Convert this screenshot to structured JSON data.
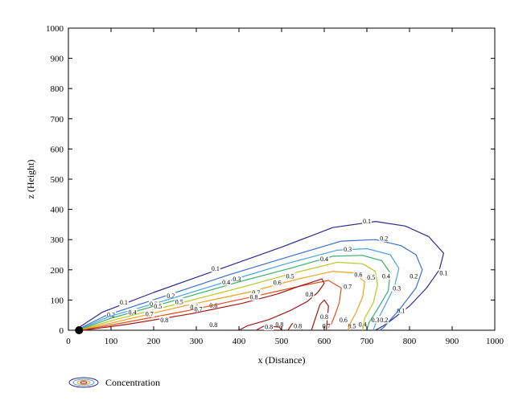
{
  "chart_data": {
    "type": "contour",
    "xlabel": "x (Distance)",
    "ylabel": "z (Height)",
    "xlim": [
      0,
      1000
    ],
    "ylim": [
      0,
      1000
    ],
    "xticks": [
      0,
      100,
      200,
      300,
      400,
      500,
      600,
      700,
      800,
      900,
      1000
    ],
    "yticks": [
      0,
      100,
      200,
      300,
      400,
      500,
      600,
      700,
      800,
      900,
      1000
    ],
    "grid": false,
    "legend": {
      "label": "Concentration",
      "position": "bottom-left"
    },
    "source": {
      "x": 25,
      "z": 0,
      "color": "#000000"
    },
    "levels": [
      {
        "level": 0.1,
        "color": "#2a2a8c",
        "points": [
          [
            15,
            0
          ],
          [
            80,
            60
          ],
          [
            200,
            125
          ],
          [
            360,
            205
          ],
          [
            500,
            275
          ],
          [
            620,
            340
          ],
          [
            720,
            360
          ],
          [
            790,
            345
          ],
          [
            845,
            310
          ],
          [
            880,
            255
          ],
          [
            870,
            200
          ],
          [
            840,
            140
          ],
          [
            800,
            80
          ],
          [
            745,
            20
          ],
          [
            720,
            0
          ]
        ],
        "labels": [
          [
            130,
            93
          ],
          [
            345,
            205
          ],
          [
            700,
            362
          ],
          [
            880,
            190
          ],
          [
            780,
            65
          ]
        ]
      },
      {
        "level": 0.2,
        "color": "#3a6fd0",
        "points": [
          [
            18,
            0
          ],
          [
            90,
            50
          ],
          [
            220,
            110
          ],
          [
            380,
            185
          ],
          [
            520,
            245
          ],
          [
            640,
            295
          ],
          [
            720,
            300
          ],
          [
            780,
            280
          ],
          [
            815,
            250
          ],
          [
            830,
            200
          ],
          [
            815,
            140
          ],
          [
            780,
            75
          ],
          [
            740,
            10
          ],
          [
            730,
            0
          ]
        ],
        "labels": [
          [
            100,
            52
          ],
          [
            240,
            115
          ],
          [
            740,
            305
          ],
          [
            810,
            180
          ],
          [
            740,
            35
          ]
        ]
      },
      {
        "level": 0.3,
        "color": "#4aa3e0",
        "points": [
          [
            20,
            0
          ],
          [
            95,
            45
          ],
          [
            230,
            100
          ],
          [
            380,
            165
          ],
          [
            510,
            220
          ],
          [
            630,
            265
          ],
          [
            700,
            270
          ],
          [
            755,
            250
          ],
          [
            775,
            205
          ],
          [
            765,
            145
          ],
          [
            740,
            75
          ],
          [
            720,
            20
          ],
          [
            715,
            0
          ]
        ],
        "labels": [
          [
            200,
            88
          ],
          [
            395,
            170
          ],
          [
            655,
            268
          ],
          [
            770,
            140
          ],
          [
            720,
            35
          ]
        ]
      },
      {
        "level": 0.4,
        "color": "#38b070",
        "points": [
          [
            22,
            0
          ],
          [
            100,
            40
          ],
          [
            240,
            95
          ],
          [
            400,
            160
          ],
          [
            520,
            205
          ],
          [
            620,
            245
          ],
          [
            690,
            248
          ],
          [
            735,
            230
          ],
          [
            755,
            190
          ],
          [
            750,
            130
          ],
          [
            725,
            70
          ],
          [
            705,
            25
          ],
          [
            700,
            0
          ]
        ],
        "labels": [
          [
            150,
            60
          ],
          [
            370,
            160
          ],
          [
            600,
            237
          ],
          [
            745,
            180
          ],
          [
            690,
            20
          ]
        ]
      },
      {
        "level": 0.5,
        "color": "#b8c828",
        "points": [
          [
            24,
            0
          ],
          [
            110,
            35
          ],
          [
            250,
            85
          ],
          [
            400,
            140
          ],
          [
            530,
            190
          ],
          [
            630,
            225
          ],
          [
            690,
            220
          ],
          [
            720,
            195
          ],
          [
            725,
            150
          ],
          [
            715,
            90
          ],
          [
            695,
            40
          ],
          [
            690,
            0
          ]
        ],
        "labels": [
          [
            210,
            80
          ],
          [
            260,
            95
          ],
          [
            520,
            180
          ],
          [
            710,
            175
          ],
          [
            665,
            15
          ]
        ]
      },
      {
        "level": 0.6,
        "color": "#f0a020",
        "points": [
          [
            27,
            0
          ],
          [
            120,
            30
          ],
          [
            270,
            80
          ],
          [
            420,
            125
          ],
          [
            540,
            170
          ],
          [
            620,
            195
          ],
          [
            670,
            190
          ],
          [
            695,
            160
          ],
          [
            690,
            110
          ],
          [
            675,
            60
          ],
          [
            660,
            20
          ],
          [
            655,
            0
          ]
        ],
        "labels": [
          [
            295,
            77
          ],
          [
            340,
            83
          ],
          [
            490,
            158
          ],
          [
            680,
            185
          ],
          [
            645,
            35
          ]
        ]
      },
      {
        "level": 0.7,
        "color": "#e05020",
        "points": [
          [
            30,
            0
          ],
          [
            130,
            25
          ],
          [
            280,
            65
          ],
          [
            430,
            110
          ],
          [
            540,
            145
          ],
          [
            610,
            165
          ],
          [
            640,
            140
          ],
          [
            635,
            90
          ],
          [
            625,
            50
          ],
          [
            615,
            15
          ],
          [
            610,
            0
          ]
        ],
        "labels": [
          [
            190,
            55
          ],
          [
            305,
            70
          ],
          [
            440,
            125
          ],
          [
            655,
            145
          ],
          [
            605,
            15
          ]
        ]
      },
      {
        "level": 0.8,
        "color": "#a01818",
        "points": [
          [
            35,
            0
          ],
          [
            140,
            20
          ],
          [
            290,
            55
          ],
          [
            410,
            90
          ],
          [
            490,
            120
          ],
          [
            540,
            145
          ],
          [
            595,
            170
          ],
          [
            600,
            155
          ],
          [
            585,
            125
          ],
          [
            560,
            95
          ],
          [
            520,
            65
          ],
          [
            470,
            35
          ],
          [
            420,
            15
          ],
          [
            400,
            0
          ]
        ],
        "labels": [
          [
            225,
            35
          ],
          [
            435,
            110
          ],
          [
            565,
            120
          ],
          [
            340,
            18
          ],
          [
            495,
            20
          ]
        ]
      },
      {
        "level": 0.8,
        "color": "#a01818",
        "points": [
          [
            440,
            0
          ],
          [
            460,
            15
          ],
          [
            495,
            10
          ],
          [
            500,
            0
          ]
        ],
        "labels": [
          [
            470,
            12
          ]
        ]
      },
      {
        "level": 0.8,
        "color": "#a01818",
        "points": [
          [
            515,
            0
          ],
          [
            525,
            22
          ],
          [
            545,
            20
          ],
          [
            548,
            0
          ]
        ],
        "labels": [
          [
            538,
            15
          ]
        ]
      },
      {
        "level": 0.8,
        "color": "#a01818",
        "points": [
          [
            570,
            0
          ],
          [
            590,
            85
          ],
          [
            600,
            100
          ],
          [
            610,
            80
          ],
          [
            605,
            0
          ]
        ],
        "labels": [
          [
            600,
            45
          ]
        ]
      }
    ]
  }
}
